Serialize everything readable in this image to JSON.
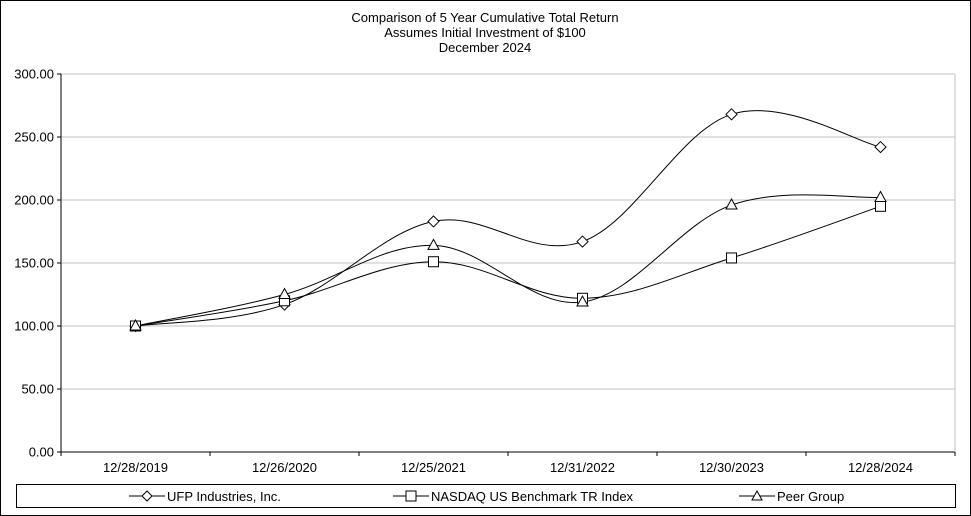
{
  "chart_data": {
    "type": "line",
    "title": [
      "Comparison of 5 Year Cumulative Total Return",
      "Assumes Initial Investment of $100",
      "December 2024"
    ],
    "categories": [
      "12/28/2019",
      "12/26/2020",
      "12/25/2021",
      "12/31/2022",
      "12/30/2023",
      "12/28/2024"
    ],
    "ylim": [
      0,
      300
    ],
    "yticks": [
      "0.00",
      "50.00",
      "100.00",
      "150.00",
      "200.00",
      "250.00",
      "300.00"
    ],
    "ytick_values": [
      0,
      50,
      100,
      150,
      200,
      250,
      300
    ],
    "grid": true,
    "legend_position": "bottom",
    "series": [
      {
        "name": "UFP Industries, Inc.",
        "marker": "diamond",
        "values": [
          100,
          117,
          183,
          167,
          268,
          242
        ]
      },
      {
        "name": "NASDAQ US Benchmark TR Index",
        "marker": "square",
        "values": [
          100,
          120,
          151,
          122,
          154,
          195
        ]
      },
      {
        "name": "Peer Group",
        "marker": "triangle",
        "values": [
          100,
          125,
          164,
          119,
          196,
          202
        ]
      }
    ]
  },
  "colors": {
    "line": "#000000",
    "grid": "#c0c0c0",
    "background": "#ffffff"
  }
}
